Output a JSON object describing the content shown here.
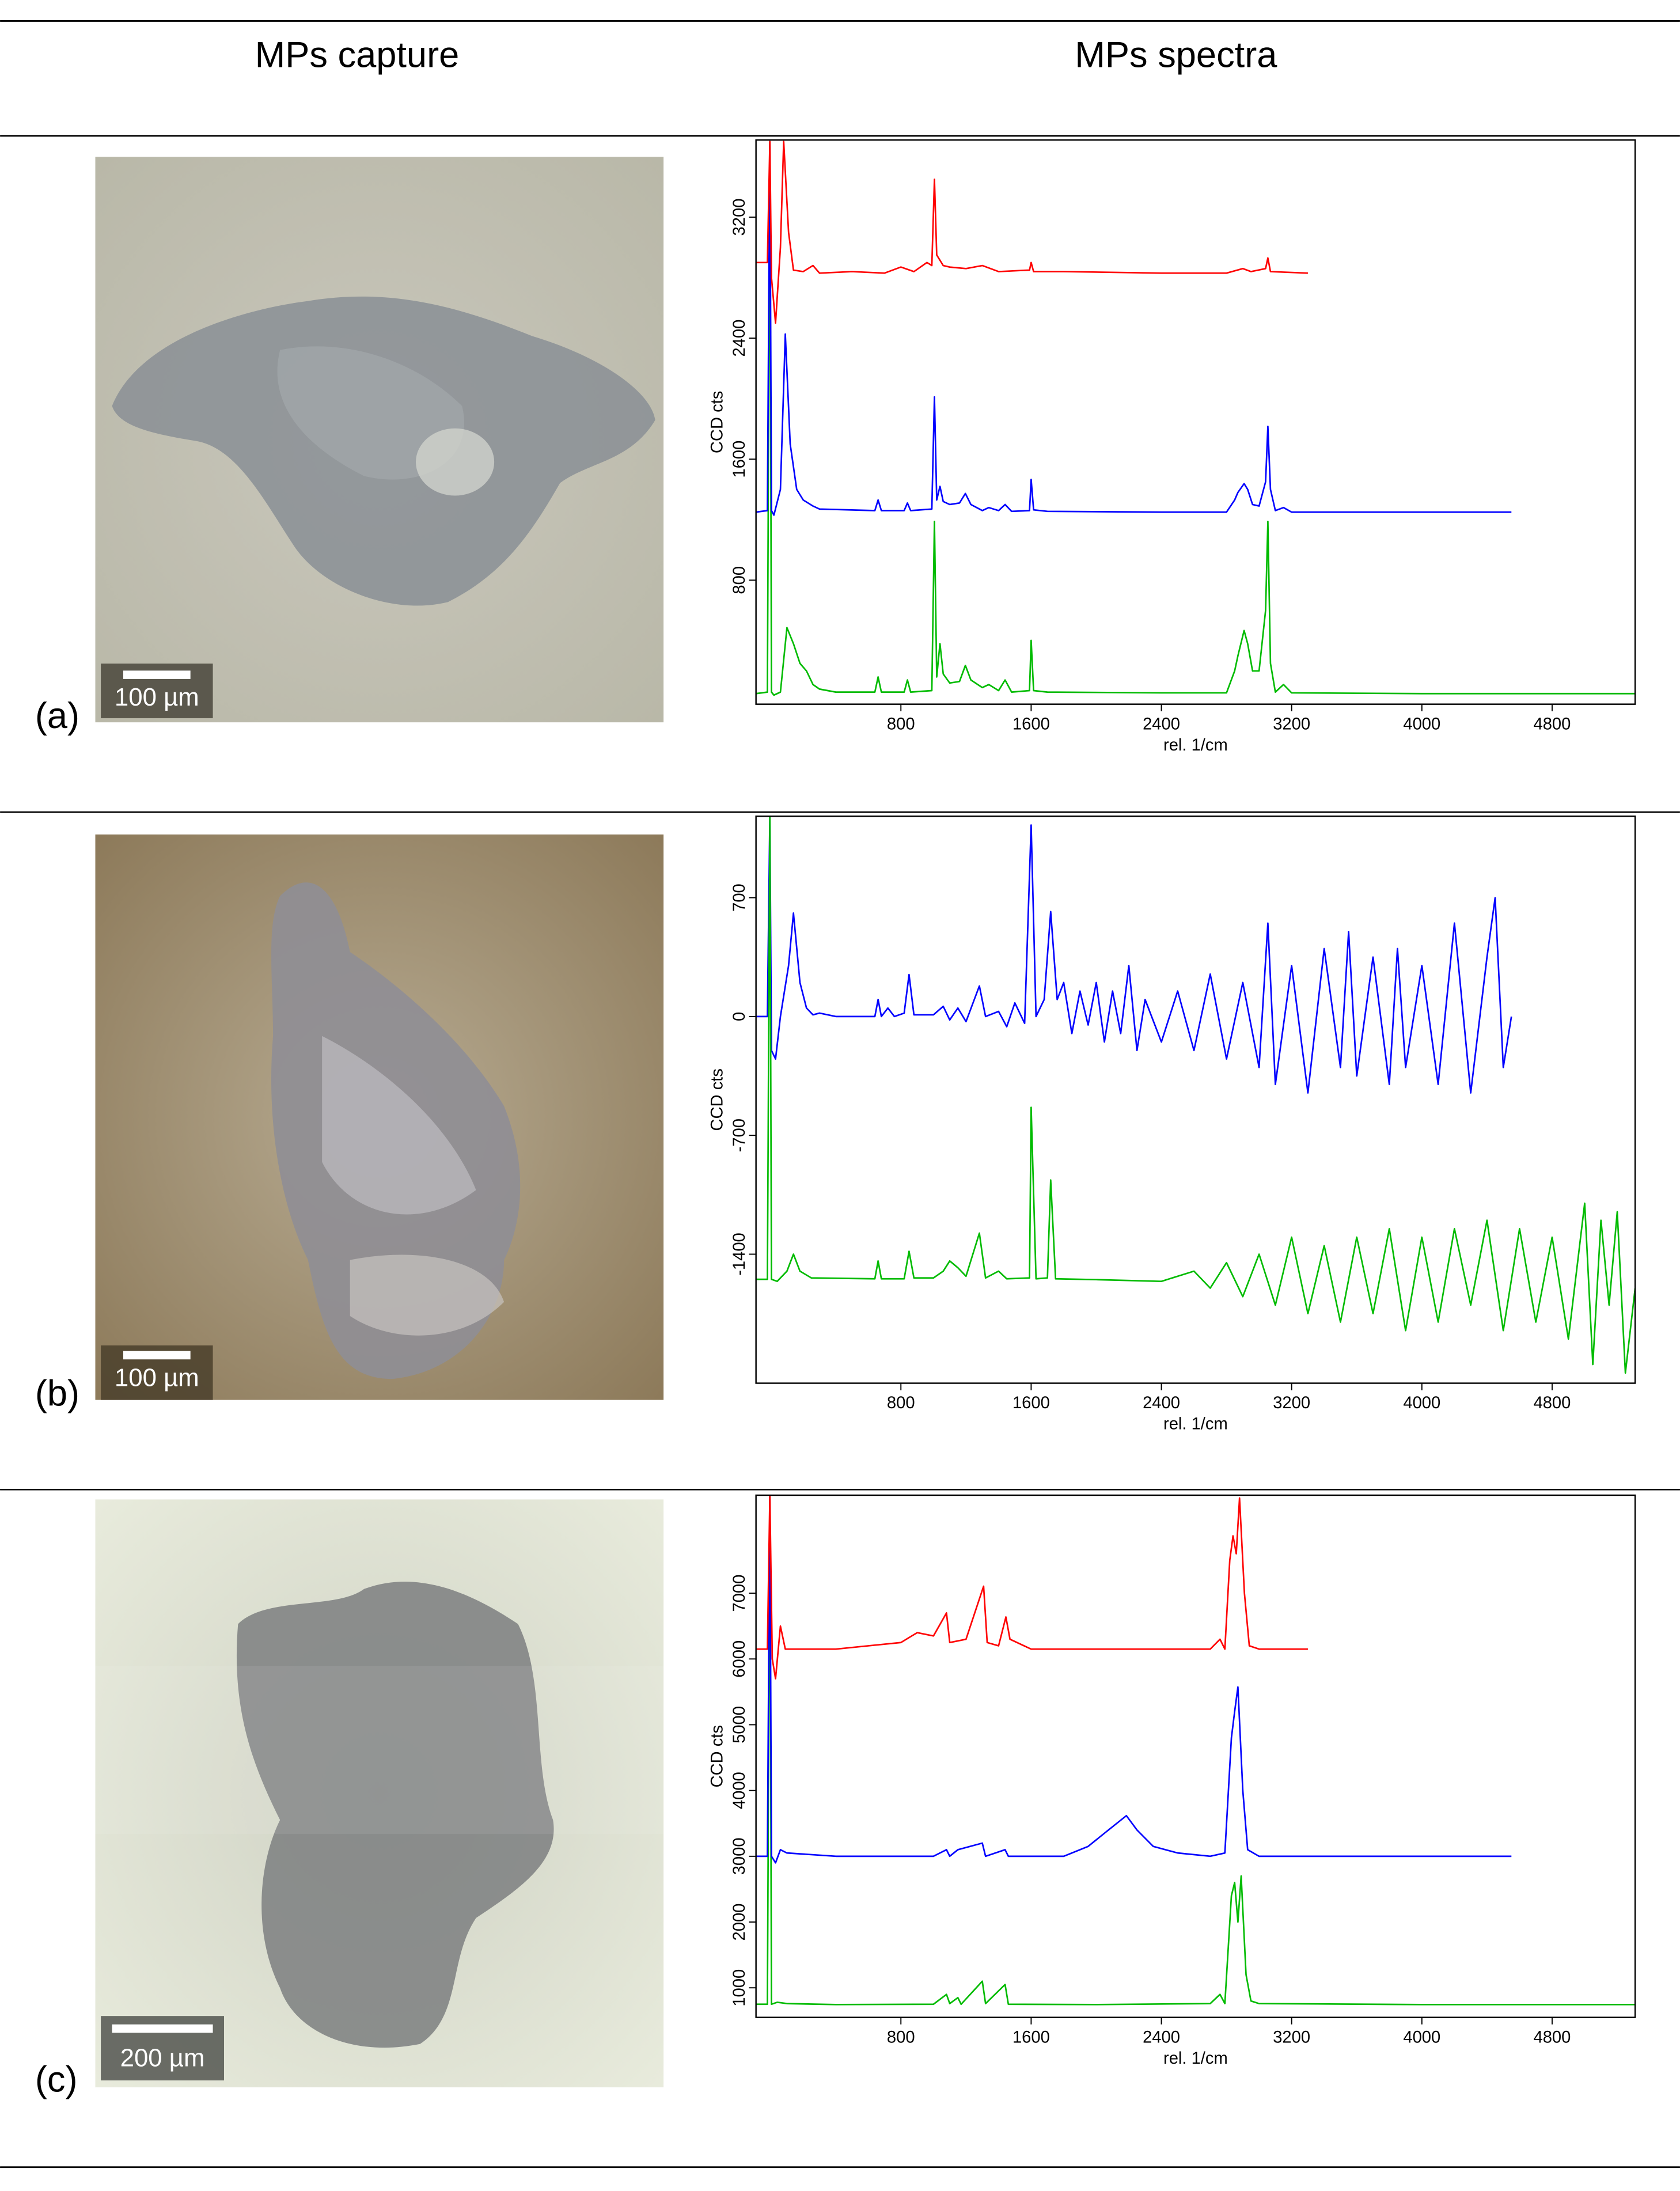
{
  "header": {
    "capture": "MPs capture",
    "spectra": "MPs spectra"
  },
  "panels": [
    {
      "label": "(a)",
      "scale_bar": "100 µm"
    },
    {
      "label": "(b)",
      "scale_bar": "100 µm"
    },
    {
      "label": "(c)",
      "scale_bar": "200 µm"
    }
  ],
  "chart_data": [
    {
      "type": "line",
      "x_label": "rel. 1/cm",
      "y_label": "CCD cts",
      "xlim": [
        -90,
        5310
      ],
      "xticks": [
        800,
        1600,
        2400,
        3200,
        4000,
        4800
      ],
      "ylim": [
        -20,
        3710
      ],
      "yticks": [
        800,
        1600,
        2400,
        3200
      ],
      "series": [
        {
          "color": "#00bb00",
          "x": [
            -90,
            -20,
            -5,
            5,
            20,
            60,
            100,
            140,
            180,
            220,
            260,
            300,
            400,
            640,
            660,
            680,
            820,
            840,
            860,
            990,
            1006,
            1020,
            1040,
            1060,
            1100,
            1160,
            1196,
            1230,
            1300,
            1340,
            1400,
            1440,
            1480,
            1590,
            1600,
            1615,
            1700,
            2400,
            2800,
            2850,
            2870,
            2908,
            2930,
            2960,
            3000,
            3040,
            3054,
            3070,
            3100,
            3150,
            3200,
            4000,
            5310
          ],
          "values": [
            50,
            60,
            3700,
            60,
            40,
            60,
            486,
            380,
            250,
            200,
            110,
            80,
            60,
            60,
            160,
            60,
            60,
            140,
            60,
            70,
            1188,
            160,
            380,
            180,
            120,
            130,
            236,
            140,
            90,
            110,
            70,
            140,
            60,
            70,
            402,
            70,
            60,
            55,
            55,
            200,
            300,
            467,
            380,
            200,
            200,
            600,
            1188,
            250,
            60,
            110,
            55,
            50,
            50
          ]
        },
        {
          "color": "#0000ff",
          "x": [
            -90,
            -20,
            -5,
            5,
            20,
            60,
            90,
            120,
            160,
            200,
            260,
            300,
            640,
            660,
            680,
            820,
            840,
            860,
            990,
            1006,
            1020,
            1040,
            1060,
            1100,
            1160,
            1196,
            1230,
            1300,
            1340,
            1400,
            1440,
            1480,
            1590,
            1600,
            1615,
            1700,
            2400,
            2800,
            2850,
            2870,
            2908,
            2930,
            2960,
            3000,
            3040,
            3054,
            3070,
            3100,
            3150,
            3200,
            4000,
            4550
          ],
          "values": [
            1250,
            1260,
            3700,
            1260,
            1230,
            1400,
            2427,
            1700,
            1400,
            1330,
            1290,
            1270,
            1260,
            1330,
            1260,
            1260,
            1310,
            1260,
            1270,
            2011,
            1330,
            1420,
            1320,
            1300,
            1310,
            1373,
            1300,
            1260,
            1280,
            1260,
            1300,
            1255,
            1260,
            1466,
            1265,
            1255,
            1250,
            1250,
            1330,
            1380,
            1438,
            1400,
            1300,
            1290,
            1450,
            1817,
            1400,
            1260,
            1280,
            1250,
            1250,
            1250
          ]
        },
        {
          "color": "#ff0000",
          "x": [
            -90,
            -20,
            -5,
            5,
            30,
            60,
            80,
            110,
            140,
            200,
            260,
            300,
            500,
            700,
            800,
            880,
            960,
            990,
            1006,
            1020,
            1060,
            1100,
            1200,
            1300,
            1400,
            1590,
            1600,
            1615,
            1800,
            2400,
            2800,
            2900,
            2950,
            3040,
            3054,
            3070,
            3300
          ],
          "values": [
            2900,
            2900,
            3700,
            2800,
            2500,
            3000,
            3700,
            3100,
            2850,
            2840,
            2880,
            2830,
            2840,
            2830,
            2870,
            2840,
            2900,
            2880,
            3450,
            2950,
            2880,
            2870,
            2860,
            2880,
            2840,
            2850,
            2900,
            2840,
            2840,
            2830,
            2830,
            2860,
            2840,
            2860,
            2930,
            2840,
            2830
          ]
        }
      ]
    },
    {
      "type": "line",
      "x_label": "rel. 1/cm",
      "y_label": "CCD cts",
      "xlim": [
        -90,
        5310
      ],
      "xticks": [
        800,
        1600,
        2400,
        3200,
        4000,
        4800
      ],
      "ylim": [
        -2160,
        1180
      ],
      "yticks": [
        -1400,
        -700,
        0,
        700
      ],
      "series": [
        {
          "color": "#0000ff",
          "x": [
            -90,
            -20,
            -5,
            5,
            30,
            60,
            110,
            140,
            180,
            220,
            260,
            300,
            400,
            640,
            660,
            680,
            720,
            760,
            820,
            850,
            880,
            1000,
            1060,
            1100,
            1150,
            1200,
            1282,
            1320,
            1400,
            1450,
            1500,
            1560,
            1600,
            1630,
            1680,
            1720,
            1760,
            1800,
            1850,
            1900,
            1950,
            2000,
            2050,
            2100,
            2150,
            2200,
            2250,
            2300,
            2400,
            2500,
            2600,
            2700,
            2800,
            2900,
            3000,
            3054,
            3100,
            3200,
            3300,
            3400,
            3500,
            3550,
            3600,
            3700,
            3800,
            3850,
            3900,
            4000,
            4100,
            4200,
            4300,
            4400,
            4450,
            4500,
            4550
          ],
          "values": [
            0,
            0,
            1180,
            -200,
            -250,
            0,
            300,
            609,
            200,
            50,
            10,
            20,
            0,
            0,
            100,
            0,
            50,
            0,
            20,
            247,
            10,
            10,
            60,
            -20,
            50,
            -30,
            180,
            0,
            30,
            -60,
            80,
            -40,
            1128,
            0,
            100,
            618,
            100,
            200,
            -100,
            150,
            -50,
            200,
            -150,
            150,
            -100,
            300,
            -200,
            100,
            -150,
            150,
            -200,
            250,
            -250,
            200,
            -300,
            550,
            -400,
            300,
            -450,
            400,
            -300,
            500,
            -350,
            350,
            -400,
            400,
            -300,
            300,
            -400,
            550,
            -450,
            350,
            700,
            -300,
            0
          ]
        },
        {
          "color": "#00bb00",
          "x": [
            -90,
            -20,
            -5,
            5,
            40,
            100,
            140,
            180,
            250,
            640,
            660,
            680,
            820,
            850,
            880,
            1000,
            1060,
            1100,
            1150,
            1200,
            1282,
            1320,
            1400,
            1450,
            1590,
            1600,
            1630,
            1700,
            1720,
            1750,
            2000,
            2400,
            2600,
            2700,
            2800,
            2900,
            3000,
            3100,
            3200,
            3300,
            3400,
            3500,
            3600,
            3700,
            3800,
            3900,
            4000,
            4100,
            4200,
            4300,
            4400,
            4500,
            4600,
            4700,
            4800,
            4900,
            5000,
            5050,
            5100,
            5150,
            5200,
            5250,
            5310
          ],
          "values": [
            -1548,
            -1548,
            1180,
            -1548,
            -1560,
            -1500,
            -1400,
            -1500,
            -1540,
            -1545,
            -1440,
            -1545,
            -1545,
            -1383,
            -1540,
            -1540,
            -1500,
            -1440,
            -1480,
            -1530,
            -1276,
            -1540,
            -1500,
            -1545,
            -1540,
            -535,
            -1545,
            -1540,
            -963,
            -1545,
            -1550,
            -1560,
            -1500,
            -1600,
            -1450,
            -1650,
            -1400,
            -1700,
            -1300,
            -1750,
            -1350,
            -1800,
            -1300,
            -1750,
            -1250,
            -1850,
            -1300,
            -1800,
            -1250,
            -1700,
            -1200,
            -1850,
            -1250,
            -1800,
            -1300,
            -1900,
            -1100,
            -2050,
            -1200,
            -1700,
            -1150,
            -2100,
            -1600
          ]
        }
      ]
    },
    {
      "type": "line",
      "x_label": "rel. 1/cm",
      "y_label": "CCD cts",
      "xlim": [
        -90,
        5310
      ],
      "xticks": [
        800,
        1600,
        2400,
        3200,
        4000,
        4800
      ],
      "ylim": [
        550,
        8490
      ],
      "yticks": [
        1000,
        2000,
        3000,
        4000,
        5000,
        6000,
        7000
      ],
      "series": [
        {
          "color": "#00bb00",
          "x": [
            -90,
            -20,
            -5,
            5,
            40,
            100,
            400,
            1000,
            1080,
            1100,
            1150,
            1170,
            1300,
            1320,
            1440,
            1460,
            2000,
            2700,
            2760,
            2790,
            2830,
            2850,
            2870,
            2890,
            2920,
            2950,
            3000,
            4000,
            5310
          ],
          "values": [
            750,
            750,
            8490,
            750,
            780,
            760,
            745,
            750,
            900,
            760,
            850,
            750,
            1100,
            760,
            1050,
            750,
            745,
            760,
            900,
            760,
            2400,
            2600,
            2000,
            2700,
            1200,
            800,
            760,
            745,
            745
          ]
        },
        {
          "color": "#0000ff",
          "x": [
            -90,
            -20,
            -5,
            5,
            30,
            60,
            100,
            400,
            1000,
            1080,
            1100,
            1150,
            1300,
            1320,
            1440,
            1460,
            1800,
            1950,
            2050,
            2185,
            2250,
            2350,
            2500,
            2700,
            2790,
            2830,
            2850,
            2870,
            2900,
            2930,
            3000,
            4000,
            4550
          ],
          "values": [
            3000,
            3000,
            8490,
            3000,
            2900,
            3100,
            3050,
            3000,
            3000,
            3100,
            3000,
            3100,
            3200,
            3000,
            3100,
            3000,
            3000,
            3150,
            3350,
            3617,
            3400,
            3150,
            3050,
            3000,
            3050,
            4800,
            5200,
            5574,
            4000,
            3100,
            3000,
            3000,
            3000
          ]
        },
        {
          "color": "#ff0000",
          "x": [
            -90,
            -20,
            -5,
            10,
            30,
            60,
            90,
            400,
            800,
            900,
            1000,
            1080,
            1100,
            1200,
            1308,
            1330,
            1400,
            1445,
            1470,
            1600,
            2000,
            2700,
            2760,
            2790,
            2820,
            2840,
            2860,
            2880,
            2910,
            2940,
            3000,
            3300
          ],
          "values": [
            6150,
            6150,
            8490,
            6000,
            5700,
            6500,
            6150,
            6150,
            6250,
            6400,
            6350,
            6700,
            6250,
            6300,
            7106,
            6250,
            6200,
            6638,
            6300,
            6150,
            6150,
            6150,
            6300,
            6150,
            7500,
            7872,
            7600,
            8447,
            7000,
            6200,
            6150,
            6150
          ]
        }
      ]
    }
  ]
}
